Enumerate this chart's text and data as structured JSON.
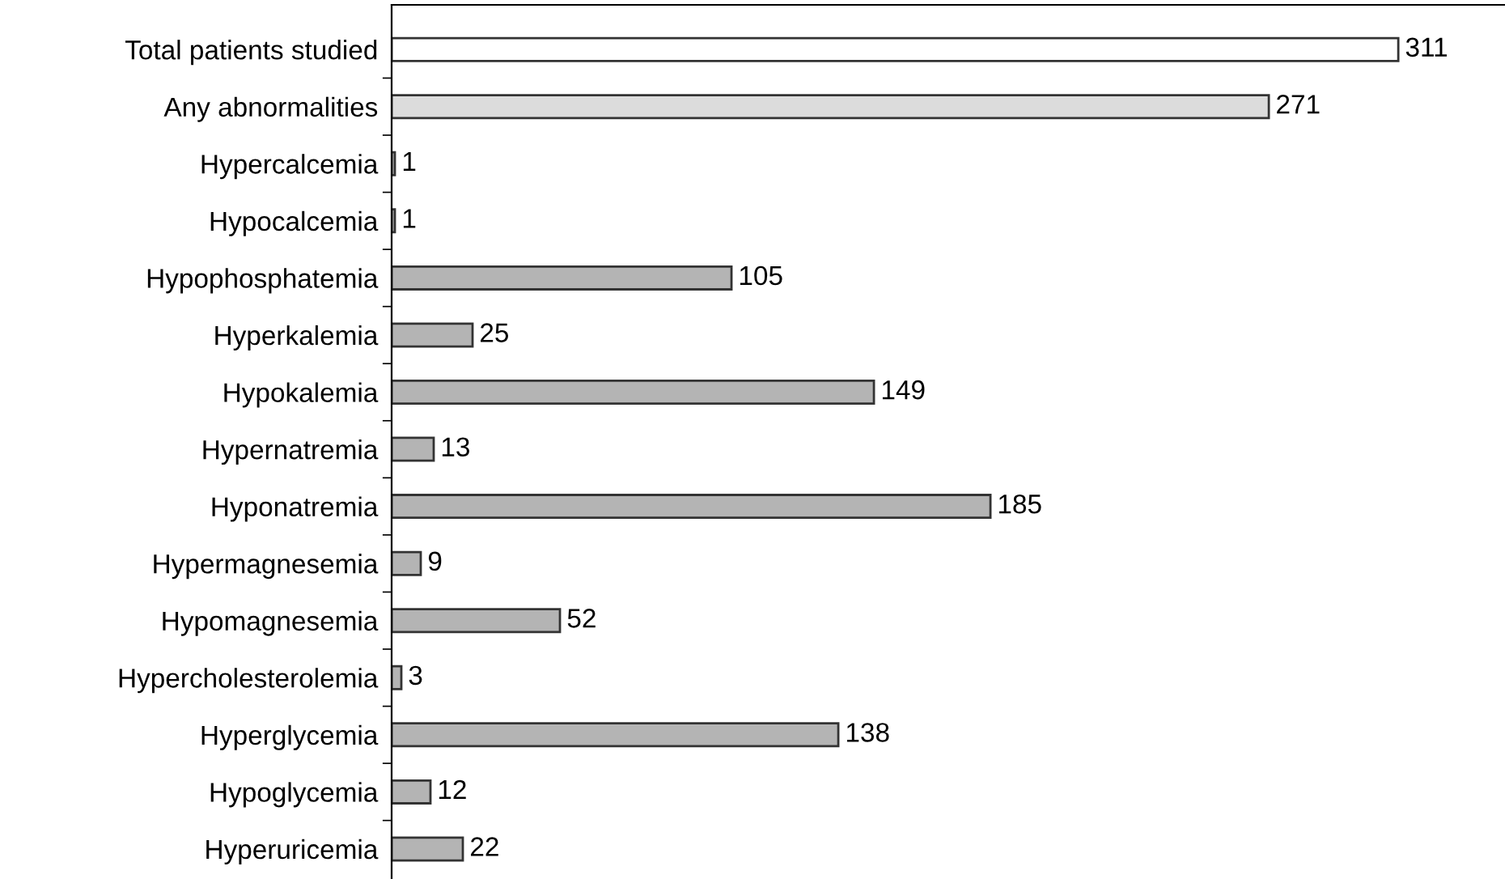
{
  "chart_data": {
    "type": "bar",
    "orientation": "horizontal",
    "data_labels": true,
    "grid": false,
    "legend": false,
    "categories": [
      "Total patients studied",
      "Any abnormalities",
      "Hypercalcemia",
      "Hypocalcemia",
      "Hypophosphatemia",
      "Hyperkalemia",
      "Hypokalemia",
      "Hypernatremia",
      "Hyponatremia",
      "Hypermagnesemia",
      "Hypomagnesemia",
      "Hypercholesterolemia",
      "Hyperglycemia",
      "Hypoglycemia",
      "Hyperuricemia"
    ],
    "values": [
      311,
      271,
      1,
      1,
      105,
      25,
      149,
      13,
      185,
      9,
      52,
      3,
      138,
      12,
      22
    ],
    "colors": [
      "#ffffff",
      "#dcdcdc",
      "#b4b4b4",
      "#b4b4b4",
      "#b4b4b4",
      "#b4b4b4",
      "#b4b4b4",
      "#b4b4b4",
      "#b4b4b4",
      "#b4b4b4",
      "#b4b4b4",
      "#b4b4b4",
      "#b4b4b4",
      "#b4b4b4",
      "#b4b4b4"
    ]
  }
}
